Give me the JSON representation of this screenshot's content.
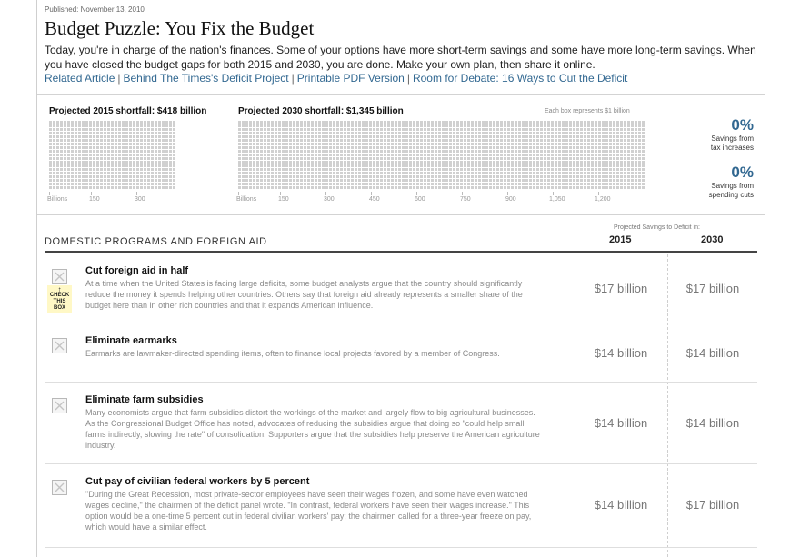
{
  "header": {
    "published": "Published: November 13, 2010",
    "title": "Budget Puzzle: You Fix the Budget",
    "intro": "Today, you're in charge of the nation's finances. Some of your options have more short-term savings and some have more long-term savings. When you have closed the budget gaps for both 2015 and 2030, you are done. Make your own plan, then share it online.",
    "links": [
      "Related Article",
      "Behind The Times's Deficit Project",
      "Printable PDF Version",
      "Room for Debate: 16 Ways to Cut the Deficit"
    ]
  },
  "shortfall": {
    "s2015": {
      "label": "Projected 2015 shortfall: $418 billion",
      "ticks": [
        "Billions",
        "150",
        "300"
      ]
    },
    "s2030": {
      "label": "Projected 2030 shortfall: $1,345 billion",
      "note": "Each box represents $1 billion",
      "ticks": [
        "Billions",
        "150",
        "300",
        "450",
        "600",
        "750",
        "900",
        "1,050",
        "1,200"
      ]
    },
    "tax": {
      "pct": "0%",
      "line1": "Savings from",
      "line2": "tax increases"
    },
    "spend": {
      "pct": "0%",
      "line1": "Savings from",
      "line2": "spending cuts"
    }
  },
  "section": {
    "title": "DOMESTIC PROGRAMS AND FOREIGN AID",
    "projected_note": "Projected Savings to Deficit in:",
    "col_2015": "2015",
    "col_2030": "2030"
  },
  "items": [
    {
      "title": "Cut foreign aid in half",
      "desc": "At a time when the United States is facing large deficits, some budget analysts argue that the country should significantly reduce the money it spends helping other countries. Others say that foreign aid already represents a smaller share of the budget here than in other rich countries and that it expands American influence.",
      "v2015": "$17 billion",
      "v2030": "$17 billion",
      "hint": [
        "CHECK",
        "THIS",
        "BOX"
      ]
    },
    {
      "title": "Eliminate earmarks",
      "desc": "Earmarks are lawmaker-directed spending items, often to finance local projects favored by a member of Congress.",
      "v2015": "$14 billion",
      "v2030": "$14 billion"
    },
    {
      "title": "Eliminate farm subsidies",
      "desc": "Many economists argue that farm subsidies distort the workings of the market and largely flow to big agricultural businesses. As the Congressional Budget Office has noted, advocates of reducing the subsidies argue that doing so \"could help small farms indirectly, slowing the rate\" of consolidation. Supporters argue that the subsidies help preserve the American agriculture industry.",
      "v2015": "$14 billion",
      "v2030": "$14 billion"
    },
    {
      "title": "Cut pay of civilian federal workers by 5 percent",
      "desc": "\"During the Great Recession, most private-sector employees have seen their wages frozen, and some have even watched wages decline,\" the chairmen of the deficit panel wrote. \"In contrast, federal workers have seen their wages increase.\" This option would be a one-time 5 percent cut in federal civilian workers' pay; the chairmen called for a three-year freeze on pay, which would have a similar effect.",
      "v2015": "$14 billion",
      "v2030": "$17 billion"
    }
  ]
}
